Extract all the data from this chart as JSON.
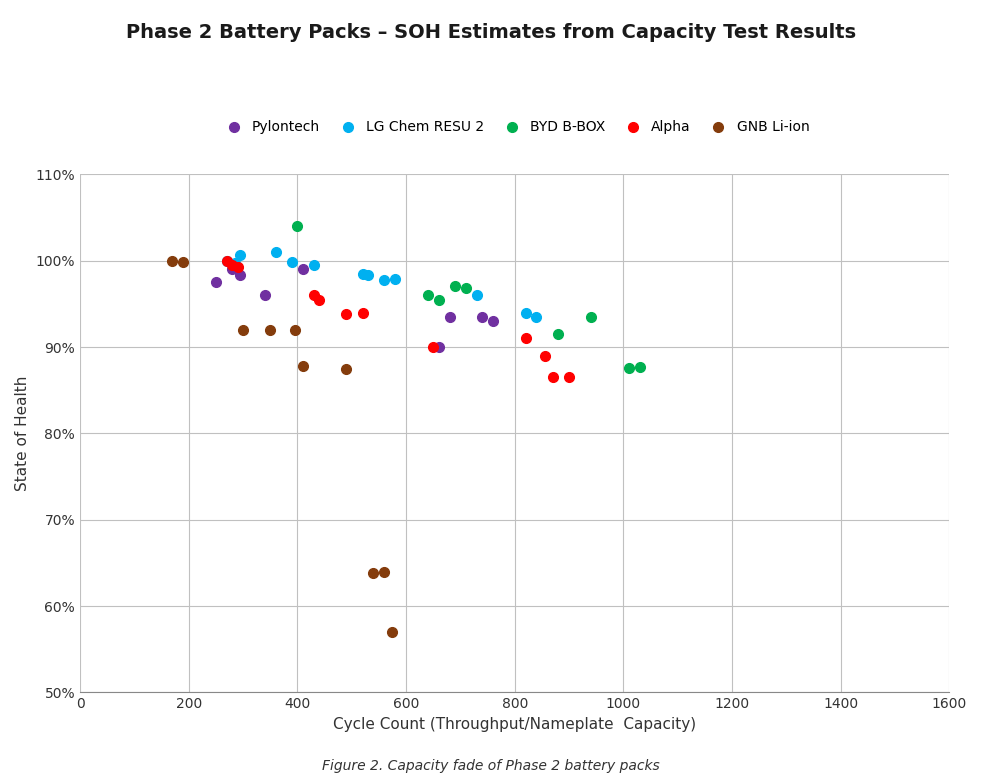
{
  "title": "Phase 2 Battery Packs – SOH Estimates from Capacity Test Results",
  "xlabel": "Cycle Count (Throughput/Nameplate  Capacity)",
  "ylabel": "State of Health",
  "caption": "Figure 2. Capacity fade of Phase 2 battery packs",
  "xlim": [
    0,
    1600
  ],
  "ylim": [
    0.5,
    1.1
  ],
  "xticks": [
    0,
    200,
    400,
    600,
    800,
    1000,
    1200,
    1400,
    1600
  ],
  "yticks": [
    0.5,
    0.6,
    0.7,
    0.8,
    0.9,
    1.0,
    1.1
  ],
  "series": {
    "Pylontech": {
      "color": "#7030A0",
      "x": [
        250,
        280,
        295,
        340,
        410,
        660,
        680,
        740,
        760
      ],
      "y": [
        0.975,
        0.99,
        0.983,
        0.96,
        0.99,
        0.9,
        0.935,
        0.935,
        0.93
      ]
    },
    "LG Chem RESU 2": {
      "color": "#00B0F0",
      "x": [
        270,
        285,
        295,
        360,
        390,
        430,
        520,
        530,
        560,
        580,
        730,
        820,
        840
      ],
      "y": [
        1.0,
        0.997,
        1.007,
        1.01,
        0.998,
        0.995,
        0.985,
        0.983,
        0.978,
        0.979,
        0.96,
        0.94,
        0.935
      ]
    },
    "BYD B-BOX": {
      "color": "#00B050",
      "x": [
        400,
        640,
        660,
        690,
        710,
        880,
        940,
        1010,
        1030
      ],
      "y": [
        1.04,
        0.96,
        0.955,
        0.971,
        0.969,
        0.915,
        0.935,
        0.876,
        0.877
      ]
    },
    "Alpha": {
      "color": "#FF0000",
      "x": [
        270,
        280,
        290,
        430,
        440,
        490,
        520,
        650,
        820,
        855,
        870,
        900
      ],
      "y": [
        1.0,
        0.995,
        0.993,
        0.96,
        0.955,
        0.938,
        0.94,
        0.9,
        0.91,
        0.89,
        0.865,
        0.865
      ]
    },
    "GNB Li-ion": {
      "color": "#843C0C",
      "x": [
        170,
        190,
        300,
        350,
        395,
        410,
        490,
        540,
        560,
        575
      ],
      "y": [
        1.0,
        0.999,
        0.92,
        0.92,
        0.92,
        0.878,
        0.875,
        0.638,
        0.64,
        0.57
      ]
    }
  },
  "background_color": "#ffffff",
  "grid_color": "#c0c0c0",
  "title_fontsize": 14,
  "label_fontsize": 11,
  "tick_fontsize": 10,
  "legend_fontsize": 10,
  "marker_size": 7
}
